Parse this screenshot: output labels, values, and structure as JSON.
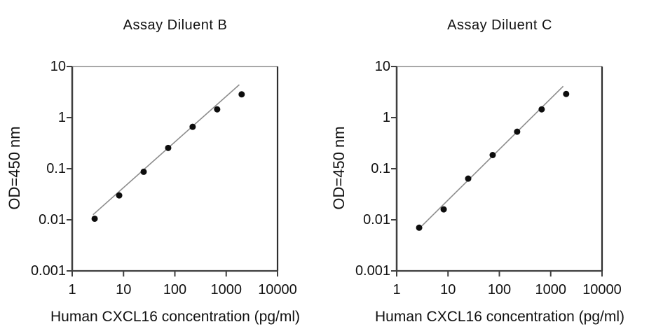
{
  "figure": {
    "background_color": "#ffffff",
    "text_color": "#111111"
  },
  "chart_data": [
    {
      "type": "scatter",
      "title": "Assay Diluent B",
      "xlabel": "Human CXCL16 concentration (pg/ml)",
      "ylabel": "OD=450 nm",
      "x_scale": "log",
      "y_scale": "log",
      "xlim": [
        1,
        10000
      ],
      "ylim": [
        0.001,
        10
      ],
      "x_tick_labels": [
        "1",
        "10",
        "100",
        "1000",
        "10000"
      ],
      "y_tick_labels": [
        "10",
        "1",
        "0.1",
        "0.01",
        "0.001"
      ],
      "x_tick_values": [
        1,
        10,
        100,
        1000,
        10000
      ],
      "y_tick_values": [
        10,
        1,
        0.1,
        0.01,
        0.001
      ],
      "grid": false,
      "legend": null,
      "points": {
        "x": [
          2.74,
          8.23,
          24.7,
          74.1,
          222,
          667,
          2000
        ],
        "y": [
          0.0105,
          0.03,
          0.087,
          0.255,
          0.66,
          1.45,
          2.85
        ]
      },
      "fit_line": {
        "x": [
          2.55,
          1800
        ],
        "y": [
          0.0126,
          4.4
        ]
      },
      "colors": {
        "point": "#0d0d0d",
        "line": "#8c8c8c",
        "axis": "#3f3f3f",
        "frame_top": "#a8a8a8",
        "frame_right": "#2e2e2e"
      }
    },
    {
      "type": "scatter",
      "title": "Assay Diluent C",
      "xlabel": "Human CXCL16 concentration (pg/ml)",
      "ylabel": "OD=450 nm",
      "x_scale": "log",
      "y_scale": "log",
      "xlim": [
        1,
        10000
      ],
      "ylim": [
        0.001,
        10
      ],
      "x_tick_labels": [
        "1",
        "10",
        "100",
        "1000",
        "10000"
      ],
      "y_tick_labels": [
        "10",
        "1",
        "0.1",
        "0.01",
        "0.001"
      ],
      "x_tick_values": [
        1,
        10,
        100,
        1000,
        10000
      ],
      "y_tick_values": [
        10,
        1,
        0.1,
        0.01,
        0.001
      ],
      "grid": false,
      "legend": null,
      "points": {
        "x": [
          2.74,
          8.23,
          24.7,
          74.1,
          222,
          667,
          2000
        ],
        "y": [
          0.007,
          0.016,
          0.064,
          0.185,
          0.53,
          1.45,
          2.9
        ]
      },
      "fit_line": {
        "x": [
          3.1,
          1750
        ],
        "y": [
          0.0076,
          4.1
        ]
      },
      "colors": {
        "point": "#0d0d0d",
        "line": "#8c8c8c",
        "axis": "#3f3f3f",
        "frame_top": "#a8a8a8",
        "frame_right": "#2e2e2e"
      }
    }
  ]
}
